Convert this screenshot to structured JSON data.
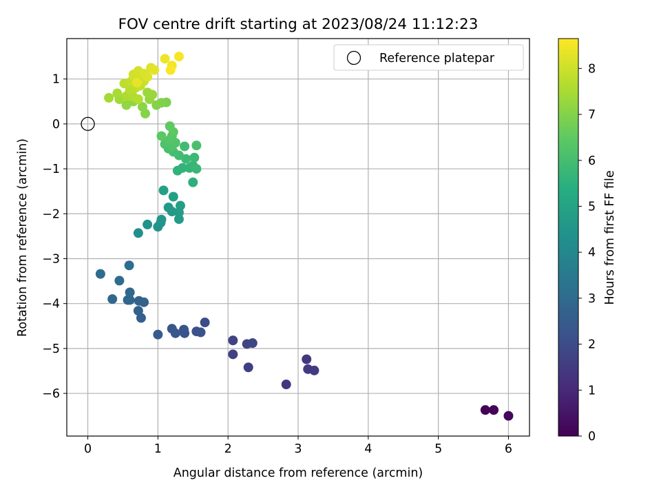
{
  "chart_data": {
    "type": "scatter",
    "title": "FOV centre drift starting at 2023/08/24 11:12:23",
    "xlabel": "Angular distance from reference (arcmin)",
    "ylabel": "Rotation from reference (arcmin)",
    "xlim": [
      -0.3,
      6.3
    ],
    "ylim": [
      -6.95,
      1.9
    ],
    "xticks": [
      0,
      1,
      2,
      3,
      4,
      5,
      6
    ],
    "yticks": [
      1,
      0,
      -1,
      -2,
      -3,
      -4,
      -5,
      -6
    ],
    "grid": true,
    "colormap": "viridis",
    "colorbar": {
      "label": "Hours from first FF file",
      "range": [
        0,
        8.65
      ],
      "ticks": [
        0,
        1,
        2,
        3,
        4,
        5,
        6,
        7,
        8
      ]
    },
    "legend": {
      "position": "top-right",
      "entries": [
        {
          "label": "Reference platepar",
          "marker": "open-circle"
        }
      ]
    },
    "reference_point": {
      "x": 0,
      "y": 0
    },
    "points": [
      [
        5.67,
        -6.37,
        0.05
      ],
      [
        5.79,
        -6.37,
        0.1
      ],
      [
        6.0,
        -6.5,
        0.15
      ],
      [
        2.83,
        -5.8,
        1.3
      ],
      [
        3.12,
        -5.24,
        1.4
      ],
      [
        3.14,
        -5.46,
        1.45
      ],
      [
        3.23,
        -5.49,
        1.5
      ],
      [
        2.29,
        -5.42,
        1.6
      ],
      [
        2.07,
        -5.13,
        1.65
      ],
      [
        2.07,
        -4.82,
        1.7
      ],
      [
        2.27,
        -4.9,
        1.75
      ],
      [
        2.35,
        -4.88,
        1.8
      ],
      [
        1.67,
        -4.42,
        2.0
      ],
      [
        1.55,
        -4.62,
        2.1
      ],
      [
        1.61,
        -4.64,
        2.15
      ],
      [
        1.37,
        -4.58,
        2.2
      ],
      [
        1.38,
        -4.66,
        2.25
      ],
      [
        1.2,
        -4.56,
        2.3
      ],
      [
        1.25,
        -4.66,
        2.35
      ],
      [
        1.0,
        -4.69,
        2.45
      ],
      [
        0.76,
        -4.32,
        2.6
      ],
      [
        0.72,
        -4.16,
        2.65
      ],
      [
        0.8,
        -3.97,
        2.7
      ],
      [
        0.73,
        -3.94,
        2.75
      ],
      [
        0.57,
        -3.92,
        2.8
      ],
      [
        0.6,
        -3.92,
        2.85
      ],
      [
        0.6,
        -3.75,
        2.9
      ],
      [
        0.35,
        -3.9,
        2.95
      ],
      [
        0.45,
        -3.49,
        3.0
      ],
      [
        0.18,
        -3.34,
        3.05
      ],
      [
        0.59,
        -3.15,
        3.1
      ],
      [
        0.72,
        -2.43,
        4.3
      ],
      [
        0.85,
        -2.24,
        4.35
      ],
      [
        1.0,
        -2.29,
        4.4
      ],
      [
        1.04,
        -2.2,
        4.45
      ],
      [
        1.05,
        -2.13,
        4.5
      ],
      [
        1.15,
        -1.86,
        4.6
      ],
      [
        1.2,
        -1.95,
        4.65
      ],
      [
        1.3,
        -2.12,
        4.7
      ],
      [
        1.3,
        -1.97,
        4.75
      ],
      [
        1.32,
        -1.82,
        4.8
      ],
      [
        1.22,
        -1.62,
        4.85
      ],
      [
        1.08,
        -1.48,
        4.9
      ],
      [
        1.5,
        -1.3,
        5.5
      ],
      [
        1.28,
        -1.04,
        5.55
      ],
      [
        1.35,
        -0.98,
        5.6
      ],
      [
        1.45,
        -0.98,
        5.65
      ],
      [
        1.5,
        -0.93,
        5.7
      ],
      [
        1.55,
        -1.0,
        5.75
      ],
      [
        1.52,
        -0.75,
        5.8
      ],
      [
        1.4,
        -0.78,
        5.85
      ],
      [
        1.38,
        -0.5,
        5.9
      ],
      [
        1.3,
        -0.7,
        5.95
      ],
      [
        1.22,
        -0.62,
        6.0
      ],
      [
        1.15,
        -0.55,
        6.05
      ],
      [
        1.55,
        -0.48,
        6.1
      ],
      [
        1.1,
        -0.45,
        6.15
      ],
      [
        1.2,
        -0.5,
        6.2
      ],
      [
        1.25,
        -0.42,
        6.25
      ],
      [
        1.17,
        -0.35,
        6.3
      ],
      [
        1.2,
        -0.27,
        6.35
      ],
      [
        1.05,
        -0.27,
        6.4
      ],
      [
        1.22,
        -0.18,
        6.45
      ],
      [
        1.17,
        -0.05,
        6.5
      ],
      [
        1.12,
        0.48,
        6.9
      ],
      [
        1.05,
        0.47,
        6.95
      ],
      [
        0.98,
        0.42,
        7.0
      ],
      [
        0.82,
        0.23,
        7.05
      ],
      [
        0.78,
        0.38,
        7.1
      ],
      [
        0.65,
        0.5,
        7.15
      ],
      [
        0.55,
        0.42,
        7.2
      ],
      [
        0.88,
        0.55,
        7.25
      ],
      [
        0.92,
        0.65,
        7.3
      ],
      [
        0.85,
        0.7,
        7.35
      ],
      [
        0.45,
        0.55,
        7.4
      ],
      [
        0.3,
        0.58,
        7.45
      ],
      [
        0.42,
        0.68,
        7.5
      ],
      [
        0.55,
        0.62,
        7.55
      ],
      [
        0.65,
        0.6,
        7.6
      ],
      [
        0.72,
        0.55,
        7.65
      ],
      [
        0.6,
        0.75,
        7.7
      ],
      [
        0.68,
        0.8,
        7.75
      ],
      [
        0.52,
        0.9,
        7.8
      ],
      [
        0.75,
        0.85,
        7.85
      ],
      [
        0.62,
        0.95,
        7.9
      ],
      [
        0.8,
        0.95,
        7.95
      ],
      [
        0.75,
        1.0,
        8.0
      ],
      [
        0.65,
        1.1,
        8.05
      ],
      [
        0.72,
        1.18,
        8.1
      ],
      [
        0.8,
        1.12,
        8.15
      ],
      [
        0.85,
        1.05,
        8.2
      ],
      [
        0.9,
        1.25,
        8.25
      ],
      [
        0.95,
        1.2,
        8.3
      ],
      [
        0.7,
        0.92,
        8.35
      ],
      [
        1.1,
        1.45,
        8.45
      ],
      [
        1.2,
        1.3,
        8.5
      ],
      [
        1.3,
        1.5,
        8.55
      ],
      [
        1.18,
        1.2,
        8.6
      ]
    ]
  }
}
